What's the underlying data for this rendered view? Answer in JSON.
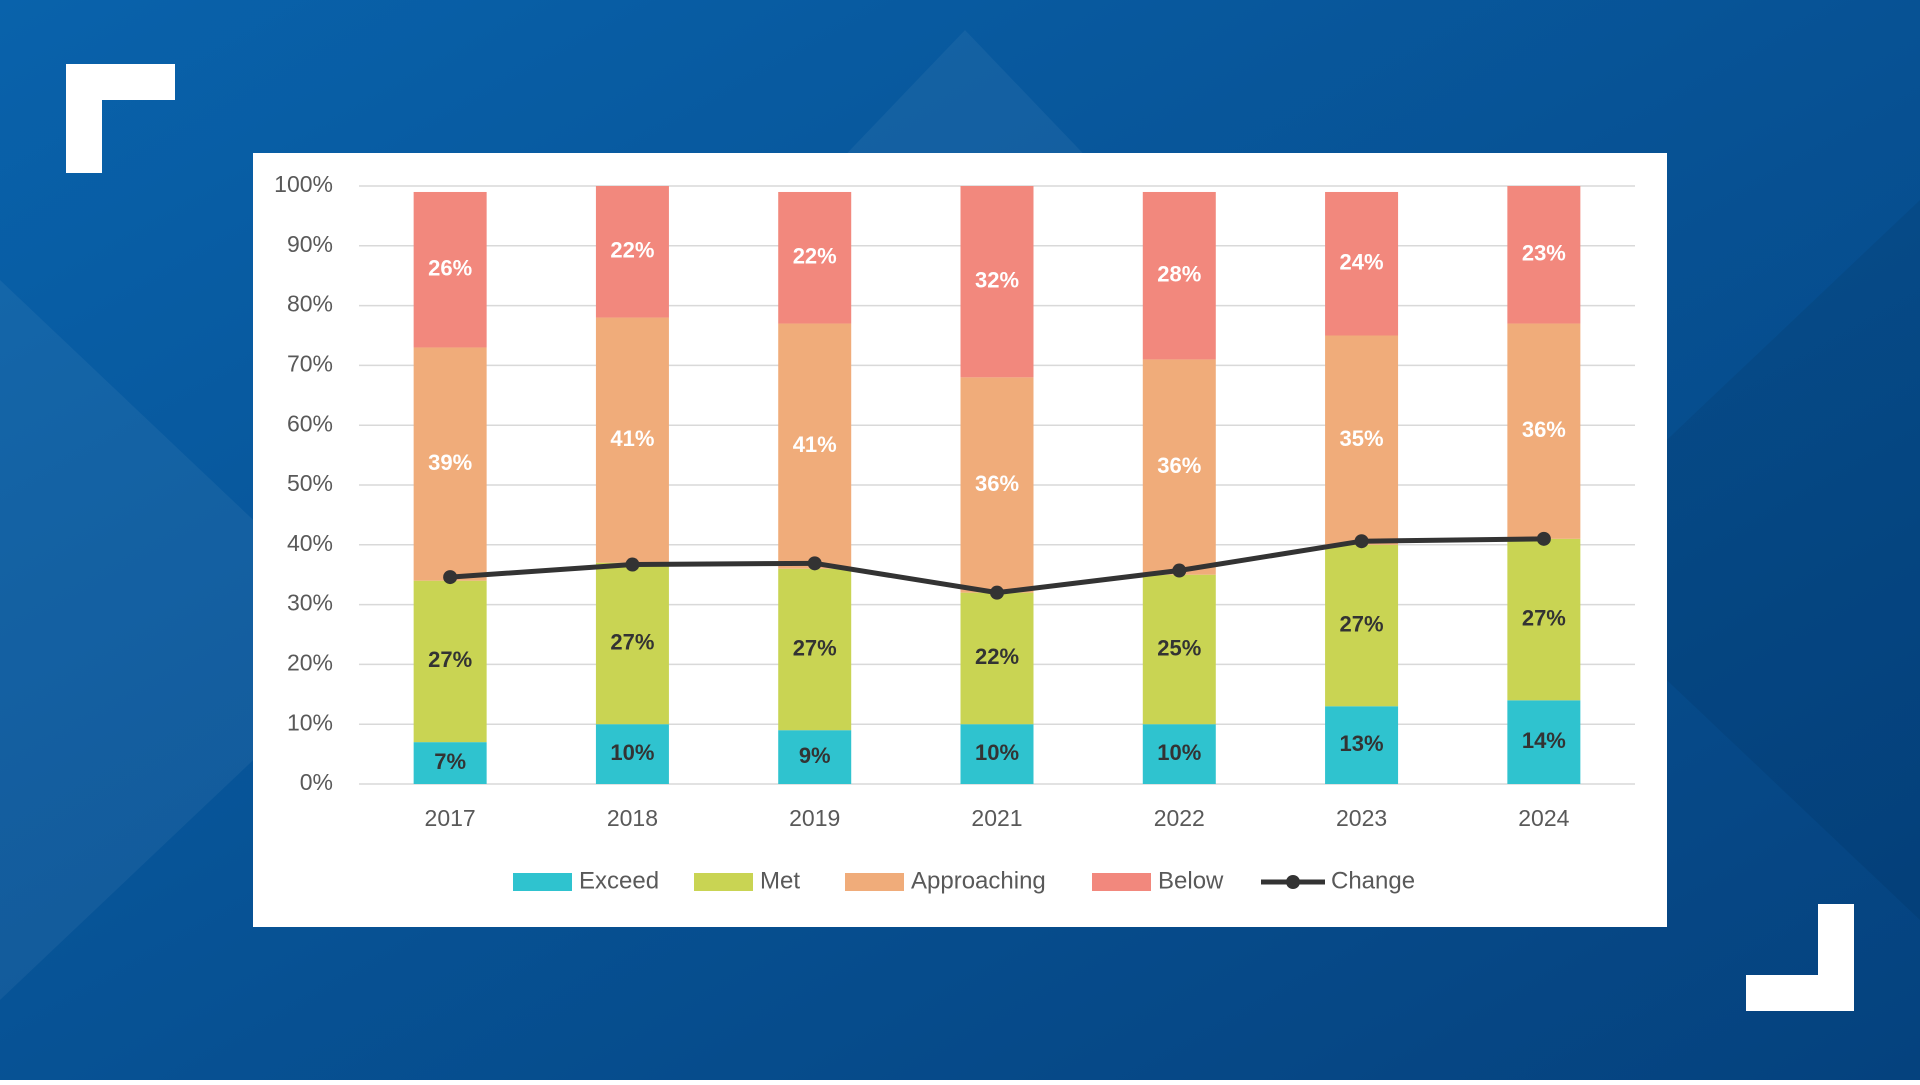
{
  "chart_data": {
    "type": "bar",
    "stacked": true,
    "categories": [
      "2017",
      "2018",
      "2019",
      "2021",
      "2022",
      "2023",
      "2024"
    ],
    "series": [
      {
        "name": "Exceed",
        "color": "#2fc3cf",
        "values": [
          7,
          10,
          9,
          10,
          10,
          13,
          14
        ],
        "value_labels": [
          "7%",
          "10%",
          "9%",
          "10%",
          "10%",
          "13%",
          "14%"
        ],
        "label_color": "#333333"
      },
      {
        "name": "Met",
        "color": "#c9d453",
        "values": [
          27,
          27,
          27,
          22,
          25,
          27,
          27
        ],
        "value_labels": [
          "27%",
          "27%",
          "27%",
          "22%",
          "25%",
          "27%",
          "27%"
        ],
        "label_color": "#333333"
      },
      {
        "name": "Approaching",
        "color": "#f0ac7a",
        "values": [
          39,
          41,
          41,
          36,
          36,
          35,
          36
        ],
        "value_labels": [
          "39%",
          "41%",
          "41%",
          "36%",
          "36%",
          "35%",
          "36%"
        ],
        "label_color": "#ffffff"
      },
      {
        "name": "Below",
        "color": "#f2887d",
        "values": [
          26,
          22,
          22,
          32,
          28,
          24,
          23
        ],
        "value_labels": [
          "26%",
          "22%",
          "22%",
          "32%",
          "28%",
          "24%",
          "23%"
        ],
        "label_color": "#ffffff"
      },
      {
        "name": "Change",
        "type": "line",
        "color": "#333333",
        "values": [
          34.6,
          36.7,
          36.9,
          32,
          35.7,
          40.6,
          41
        ]
      }
    ],
    "ylim": [
      0,
      100
    ],
    "yticks": [
      {
        "value": 0,
        "label": "0%"
      },
      {
        "value": 10,
        "label": "10%"
      },
      {
        "value": 20,
        "label": "20%"
      },
      {
        "value": 30,
        "label": "30%"
      },
      {
        "value": 40,
        "label": "40%"
      },
      {
        "value": 50,
        "label": "50%"
      },
      {
        "value": 60,
        "label": "60%"
      },
      {
        "value": 70,
        "label": "70%"
      },
      {
        "value": 80,
        "label": "80%"
      },
      {
        "value": 90,
        "label": "90%"
      },
      {
        "value": 100,
        "label": "100%"
      }
    ],
    "grid": true,
    "legend": "bottom"
  }
}
